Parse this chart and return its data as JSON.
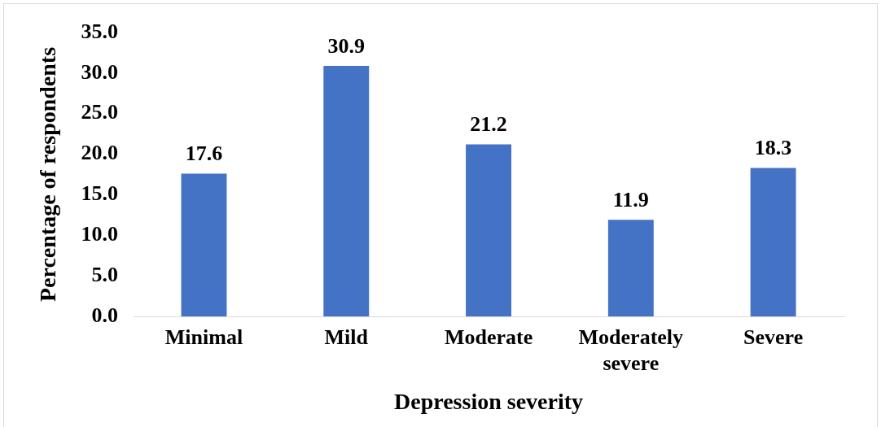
{
  "chart_data": {
    "type": "bar",
    "xlabel": "Depression severity",
    "ylabel": "Percentage of respondents",
    "categories": [
      "Minimal",
      "Mild",
      "Moderate",
      "Moderately severe",
      "Severe"
    ],
    "values": [
      17.6,
      30.9,
      21.2,
      11.9,
      18.3
    ],
    "color": "#4472c4",
    "ylim": [
      0,
      35
    ],
    "yticks": [
      {
        "value": 0,
        "label": "0.0"
      },
      {
        "value": 5,
        "label": "5.0"
      },
      {
        "value": 10,
        "label": "10.0"
      },
      {
        "value": 15,
        "label": "15.0"
      },
      {
        "value": 20,
        "label": "20.0"
      },
      {
        "value": 25,
        "label": "25.0"
      },
      {
        "value": 30,
        "label": "30.0"
      },
      {
        "value": 35,
        "label": "35.0"
      }
    ],
    "value_labels": [
      "17.6",
      "30.9",
      "21.2",
      "11.9",
      "18.3"
    ],
    "grid": false,
    "legend": false
  }
}
